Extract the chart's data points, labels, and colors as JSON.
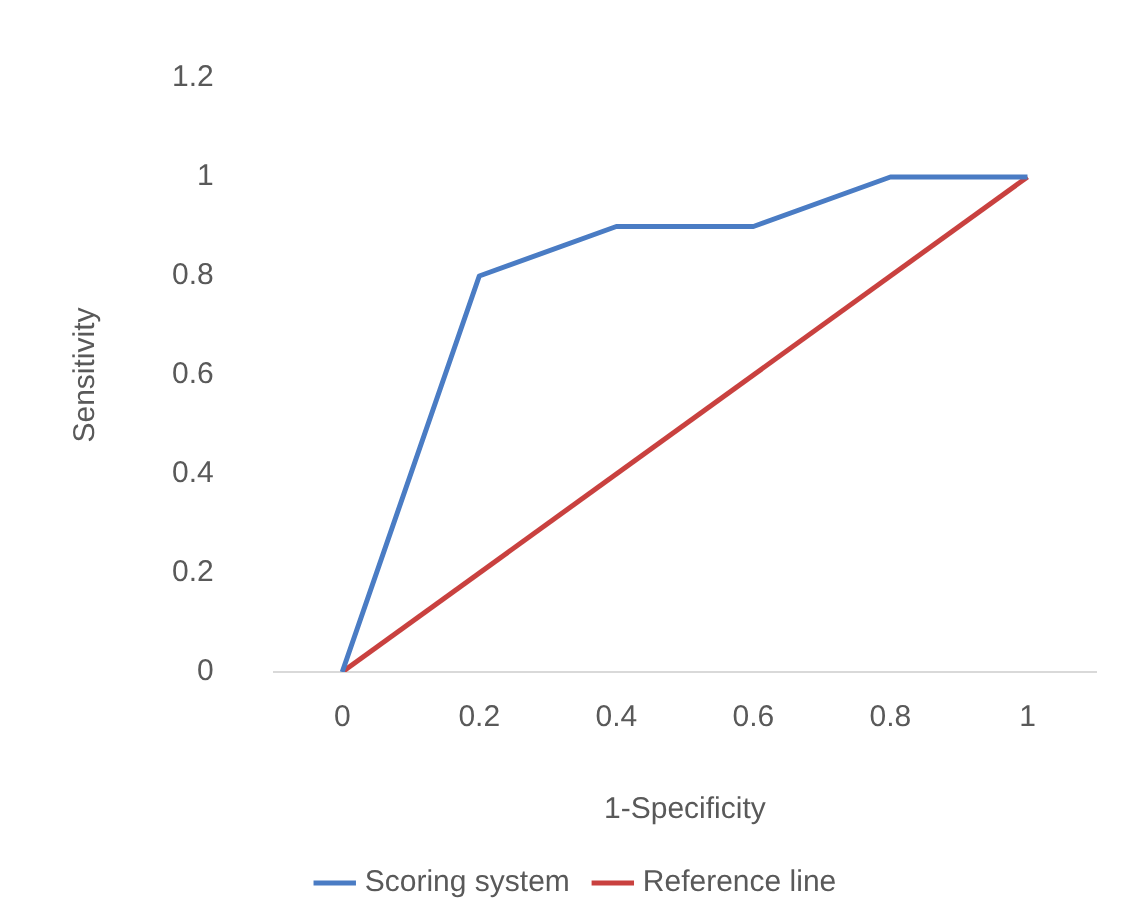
{
  "chart_data": {
    "type": "line",
    "xlabel": "1-Specificity",
    "ylabel": "Sensitivity",
    "series": [
      {
        "name": "Scoring system",
        "color": "#4a7cc4",
        "x": [
          0,
          0.2,
          0.4,
          0.6,
          0.8,
          1
        ],
        "values": [
          0,
          0.8,
          0.9,
          0.9,
          1,
          1
        ]
      },
      {
        "name": "Reference line",
        "color": "#c9413f",
        "x": [
          0,
          1
        ],
        "values": [
          0,
          1
        ]
      }
    ],
    "xlim": [
      -0.1,
      1.1
    ],
    "xticks": [
      0,
      0.2,
      0.4,
      0.6,
      0.8,
      1
    ],
    "ylim": [
      0,
      1.2
    ],
    "yticks": [
      0,
      0.2,
      0.4,
      0.6,
      0.8,
      1,
      1.2
    ],
    "grid": false,
    "legend": "bottom",
    "marker": "none",
    "line_style": "solid"
  }
}
